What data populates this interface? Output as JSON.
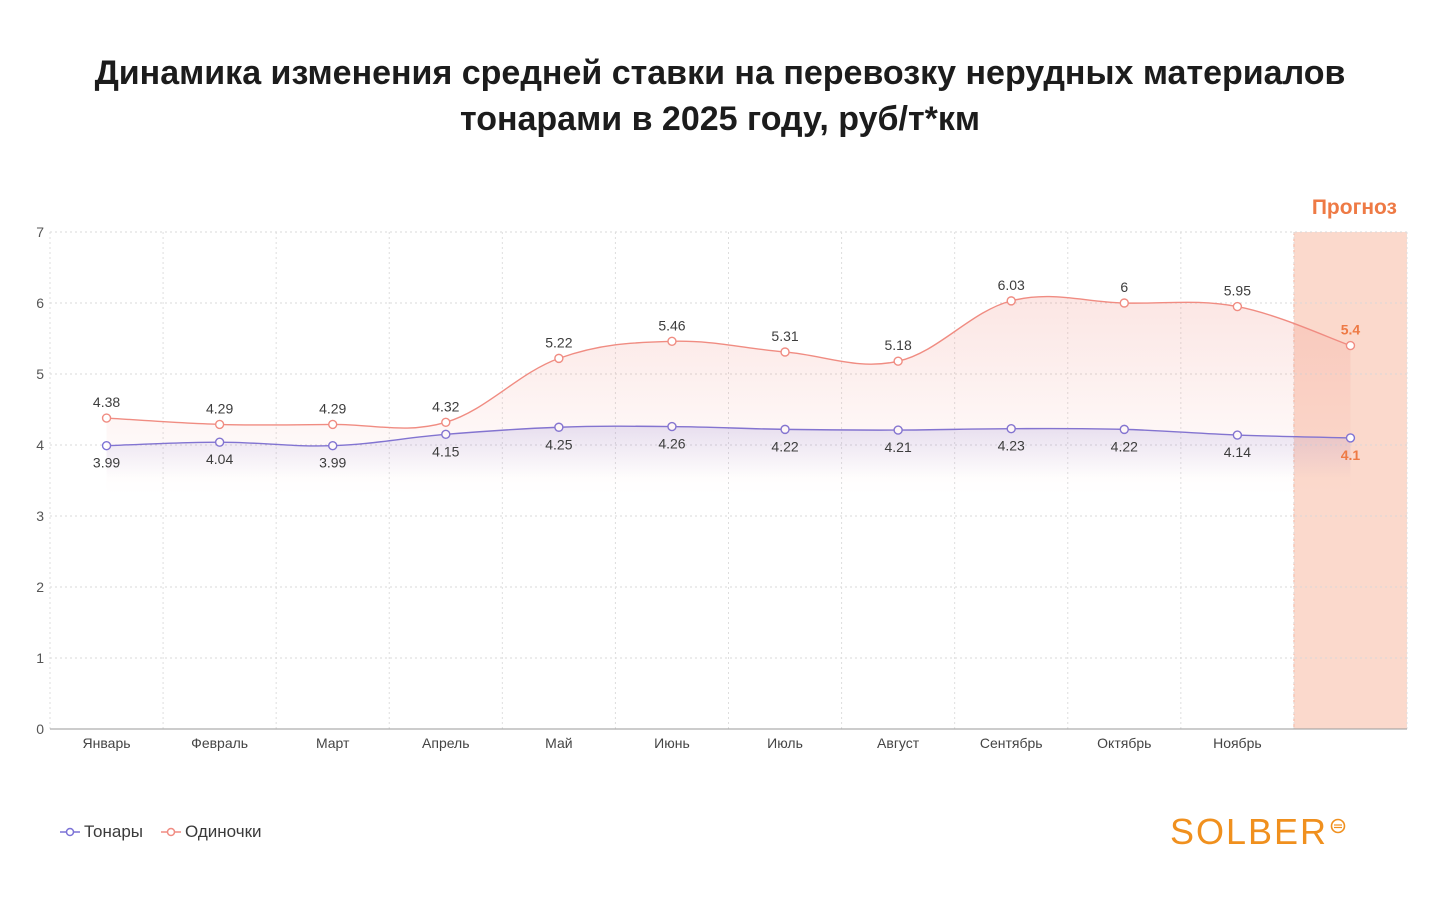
{
  "title_line1": "Динамика изменения средней ставки на перевозку нерудных материалов",
  "title_line2": "тонарами в 2025 году, руб/т*км",
  "forecast_label": "Прогноз",
  "brand": "SOLBER",
  "colors": {
    "tonary": "#7b72d6",
    "odinochki": "#f08c82",
    "forecast_band": "#fbd9cc",
    "forecast_text": "#ee7a45",
    "brand": "#f0901e"
  },
  "chart_data": {
    "type": "line",
    "categories": [
      "Январь",
      "Февраль",
      "Март",
      "Апрель",
      "Май",
      "Июнь",
      "Июль",
      "Август",
      "Сентябрь",
      "Октябрь",
      "Ноябрь",
      ""
    ],
    "ylim": [
      0,
      7
    ],
    "yticks": [
      "0",
      "1",
      "2",
      "3",
      "4",
      "5",
      "6",
      "7"
    ],
    "grid": true,
    "legend_position": "bottom-left",
    "forecast_index": 11,
    "series": [
      {
        "name": "Тонары",
        "values": [
          3.99,
          4.04,
          3.99,
          4.15,
          4.25,
          4.26,
          4.22,
          4.21,
          4.23,
          4.22,
          4.14,
          4.1
        ],
        "labels": [
          "3.99",
          "4.04",
          "3.99",
          "4.15",
          "4.25",
          "4.26",
          "4.22",
          "4.21",
          "4.23",
          "4.22",
          "4.14",
          "4.1"
        ]
      },
      {
        "name": "Одиночки",
        "values": [
          4.38,
          4.29,
          4.29,
          4.32,
          5.22,
          5.46,
          5.31,
          5.18,
          6.03,
          6.0,
          5.95,
          5.4
        ],
        "labels": [
          "4.38",
          "4.29",
          "4.29",
          "4.32",
          "5.22",
          "5.46",
          "5.31",
          "5.18",
          "6.03",
          "6",
          "5.95",
          "5.4"
        ]
      }
    ]
  }
}
